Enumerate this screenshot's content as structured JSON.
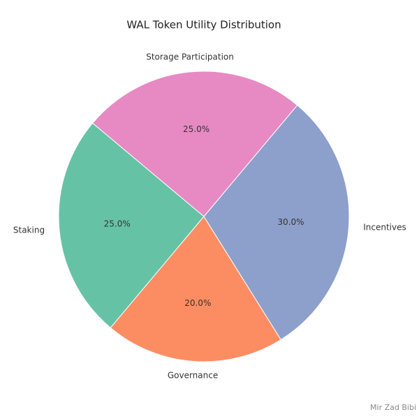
{
  "chart_data": {
    "type": "pie",
    "title": "WAL Token Utility Distribution",
    "categories": [
      "Staking",
      "Governance",
      "Incentives",
      "Storage Participation"
    ],
    "values": [
      25,
      20,
      30,
      25
    ],
    "value_labels": [
      "25.0%",
      "20.0%",
      "30.0%",
      "25.0%"
    ],
    "colors": [
      "#66c2a5",
      "#fc8d62",
      "#8da0cb",
      "#e78ac3"
    ]
  },
  "watermark": "Mir Zad Bibi"
}
